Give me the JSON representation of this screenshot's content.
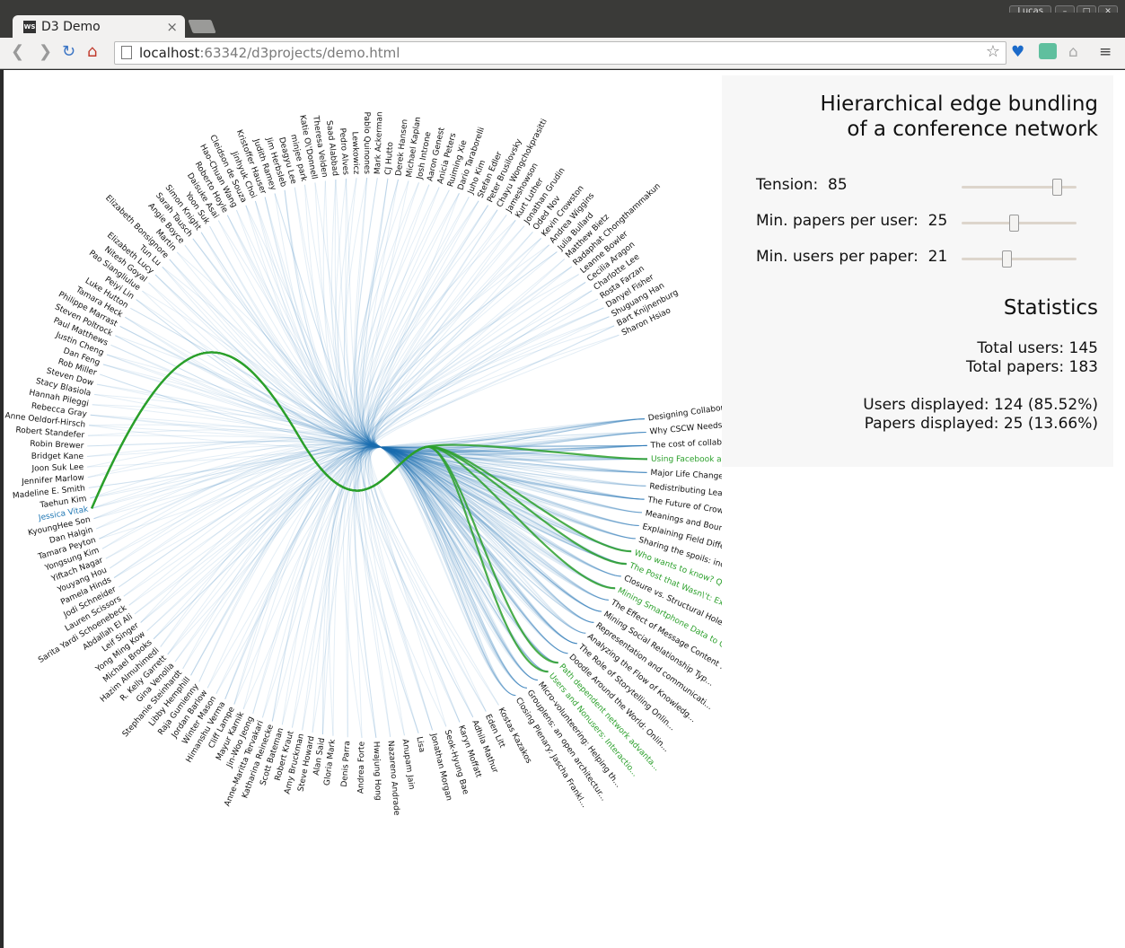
{
  "browser": {
    "user": "Lucas",
    "tab_title": "D3 Demo",
    "favicon_text": "WS",
    "url_host": "localhost",
    "url_rest": ":63342/d3projects/demo.html"
  },
  "panel": {
    "title_line1": "Hierarchical edge bundling",
    "title_line2": "of a conference network",
    "tension_label": "Tension:",
    "tension_value": 85,
    "min_papers_label": "Min. papers per user:",
    "min_papers_value": 25,
    "min_users_label": "Min. users per paper:",
    "min_users_value": 21,
    "stats_title": "Statistics",
    "total_users": "Total users: 145",
    "total_papers": "Total papers: 183",
    "users_displayed": "Users displayed: 124 (85.52%)",
    "papers_displayed": "Papers displayed: 25 (13.66%)"
  },
  "colors": {
    "edge": "#1f77b4",
    "highlight": "#2ca02c",
    "highlight_user": "#1f77b4"
  },
  "graph": {
    "selected_user": "Jessica Vitak",
    "users": [
      "Gloria Mark",
      "Alan Said",
      "Steve Howard",
      "Amy Bruckman",
      "Robert Kraut",
      "Scott Bateman",
      "Katharina Reinecke",
      "Anne-Maritta Tervakari",
      "Jin-Woo Jeong",
      "Mayur Karnik",
      "Cliff Lampe",
      "Himanshu Verma",
      "Winter Mason",
      "Jordan Barlow",
      "Raja Gumienny",
      "Libby Hemphill",
      "Stephanie Steinhardt",
      "Gina Venolia",
      "R. Kelly Garrett",
      "Hazim Almuhimedi",
      "Michael Brooks",
      "Yong Ming Kow",
      "Leif Singer",
      "Abdallah El Ali",
      "Sarita Yardi Schoenebeck",
      "Lauren Scissors",
      "Jodi Schneider",
      "Pamela Hinds",
      "Youyang Hou",
      "Yiftach Nagar",
      "Yongsung Kim",
      "Tamara Peyton",
      "Dan Halgin",
      "KyoungHee Son",
      "Jessica Vitak",
      "Taehun Kim",
      "Madeline E. Smith",
      "Jennifer Marlow",
      "Joon Suk Lee",
      "Bridget Kane",
      "Robin Brewer",
      "Robert Standefer",
      "Anne Oeldorf-Hirsch",
      "Rebecca Gray",
      "Hannah Pileggi",
      "Stacy Blasiola",
      "Steven Dow",
      "Rob Miller",
      "Dan Feng",
      "Justin Cheng",
      "Paul Matthews",
      "Steven Poltrock",
      "Philippe Marrast",
      "Tamara Heck",
      "Luke Hutton",
      "Peiyi Lin",
      "Pao Siangliulue",
      "Nitesh Goyal",
      "Elizabeth Lucy",
      "Tun Lu",
      "Elizabeth Bonsignore",
      "Martin",
      "Angie Boyce",
      "Sarah Tausch",
      "Simon Knight",
      "Yoon Suk",
      "Daisuke Asai",
      "Roberto Hoyle",
      "Hao-Chuan Wang",
      "Cleidson de Souza",
      "Jinhyuk Choi",
      "Kristoffer Hauser",
      "Judith Ramey",
      "Jim Herbsleb",
      "Deagyu Lee",
      "minjee park",
      "Katie O\\'Donnell",
      "Theresa Velden",
      "Saad Alabbad",
      "Pedro Alves",
      "Lewkowicz",
      "Pablo Quinones",
      "Mark Ackerman",
      "CJ Hutto",
      "Derek Hansen",
      "Michael Kaplan",
      "Josh Introne",
      "Aaron Genest",
      "Anicia Peters",
      "Ruiming Xie",
      "Dario Taraborelli",
      "Juho Kim",
      "Stefan Edler",
      "Peter Brusilovsky",
      "Chayu Wongchokprasitti",
      "Jameshowson",
      "Kurt Luther",
      "Jonathan Grudin",
      "Oded Nov",
      "Kevin Crowston",
      "Andrea Wiggins",
      "Julia Bullard",
      "Matthew Bietz",
      "Radaphat Chongthammakun",
      "Leanne Bowler",
      "Cecilia Aragon",
      "Charlotte Lee",
      "Rosta Farzan",
      "Danyel Fisher",
      "Shuguang Han",
      "Bart Knijnenburg",
      "Sharon Hsiao"
    ],
    "papers": [
      "Designing Collaboration: C",
      "Why CSCW Needs Science",
      "The cost of collaboration",
      "Using Facebook after los",
      "Major Life Changes and E",
      "Redistributing Leadership",
      "The Future of Crowd Work",
      "Meanings and Boundaries o",
      "Explaining Field Differences",
      "Sharing the spoils: incentives...",
      "Who wants to know? Question-as...",
      "The Post that Wasn\\'t: Explori...",
      "Closure vs. Structural Holes: ...",
      "Mining Smartphone Data to Clas...",
      "The Effect of Message Content ...",
      "Mining Social Relationship Typ...",
      "Representation and communicati...",
      "Analyzing the Flow of Knowledg...",
      "The Role of Storytelling Onlin...",
      "Doodle Around the World: Onlin...",
      "Path dependent network advanta...",
      "Users and Nonusers: Interactio...",
      "Micro-volunteering: Helping th...",
      "Grouplens: an open architectur...",
      "Closing Plenary: Jascha Frankl..."
    ],
    "highlighted_papers": [
      "Using Facebook after los",
      "Who wants to know? Question-as...",
      "The Post that Wasn\\'t: Explori...",
      "Mining Smartphone Data to Clas...",
      "Path dependent network advanta...",
      "Users and Nonusers: Interactio..."
    ],
    "tail_users": [
      "Denis Parra",
      "Andrea Forte",
      "Hwajung Hong",
      "Nazareno Andrade",
      "Anupam Jain",
      "Lisa",
      "Jonathan Morgan",
      "Seok-Hyung Bae",
      "Karyn Moffatt",
      "Adhila Mathur",
      "Eden Litt",
      "Kostas Kazakos"
    ]
  }
}
